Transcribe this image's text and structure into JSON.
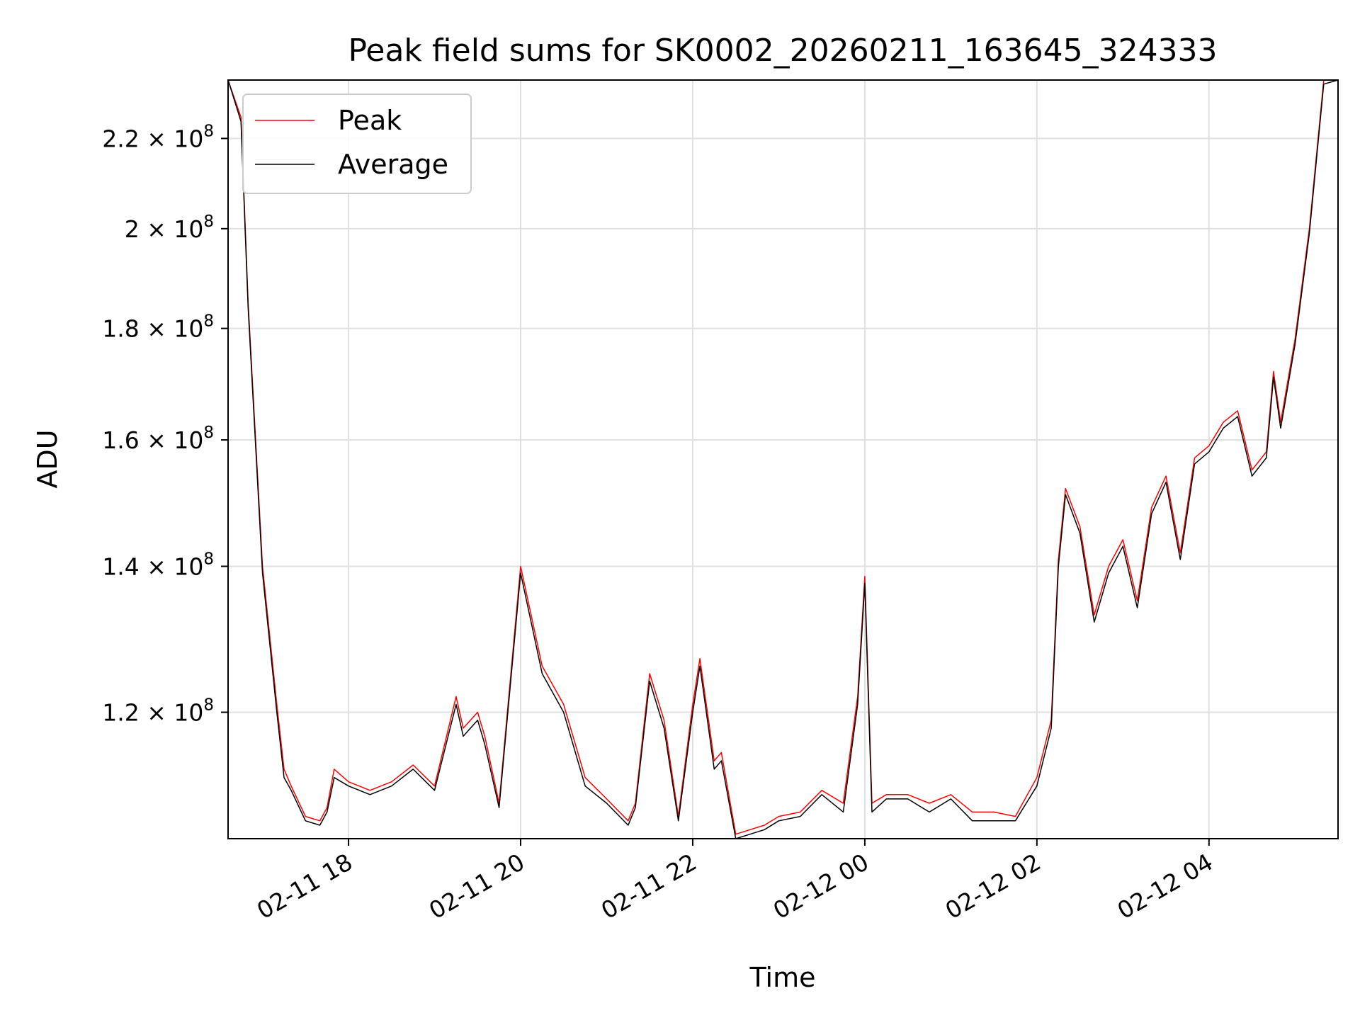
{
  "chart_data": {
    "type": "line",
    "title": "Peak field sums for SK0002_20260211_163645_324333",
    "xlabel": "Time",
    "ylabel": "ADU",
    "yscale": "log",
    "grid": true,
    "legend_position": "upper-left",
    "xlim": [
      "2026-02-11 16:36",
      "2026-02-12 05:30"
    ],
    "ylim": [
      105000000,
      234000000
    ],
    "x_ticks": [
      {
        "t": "2026-02-11 18:00",
        "label": "02-11 18"
      },
      {
        "t": "2026-02-11 20:00",
        "label": "02-11 20"
      },
      {
        "t": "2026-02-11 22:00",
        "label": "02-11 22"
      },
      {
        "t": "2026-02-12 00:00",
        "label": "02-12 00"
      },
      {
        "t": "2026-02-12 02:00",
        "label": "02-12 02"
      },
      {
        "t": "2026-02-12 04:00",
        "label": "02-12 04"
      }
    ],
    "y_ticks": [
      {
        "value": 120000000,
        "mantissa": "1.2",
        "exponent": "8"
      },
      {
        "value": 140000000,
        "mantissa": "1.4",
        "exponent": "8"
      },
      {
        "value": 160000000,
        "mantissa": "1.6",
        "exponent": "8"
      },
      {
        "value": 180000000,
        "mantissa": "1.8",
        "exponent": "8"
      },
      {
        "value": 200000000,
        "mantissa": "2",
        "exponent": "8"
      },
      {
        "value": 220000000,
        "mantissa": "2.2",
        "exponent": "8"
      }
    ],
    "series": [
      {
        "name": "Peak",
        "color": "#ff0000",
        "x": [
          "2026-02-11 16:36",
          "2026-02-11 16:45",
          "2026-02-11 16:50",
          "2026-02-11 17:00",
          "2026-02-11 17:10",
          "2026-02-11 17:15",
          "2026-02-11 17:20",
          "2026-02-11 17:30",
          "2026-02-11 17:40",
          "2026-02-11 17:45",
          "2026-02-11 17:50",
          "2026-02-11 18:00",
          "2026-02-11 18:15",
          "2026-02-11 18:30",
          "2026-02-11 18:45",
          "2026-02-11 19:00",
          "2026-02-11 19:15",
          "2026-02-11 19:20",
          "2026-02-11 19:30",
          "2026-02-11 19:35",
          "2026-02-11 19:45",
          "2026-02-11 20:00",
          "2026-02-11 20:15",
          "2026-02-11 20:30",
          "2026-02-11 20:45",
          "2026-02-11 21:00",
          "2026-02-11 21:15",
          "2026-02-11 21:20",
          "2026-02-11 21:30",
          "2026-02-11 21:40",
          "2026-02-11 21:50",
          "2026-02-11 22:00",
          "2026-02-11 22:05",
          "2026-02-11 22:15",
          "2026-02-11 22:20",
          "2026-02-11 22:30",
          "2026-02-11 22:40",
          "2026-02-11 22:50",
          "2026-02-11 23:00",
          "2026-02-11 23:15",
          "2026-02-11 23:30",
          "2026-02-11 23:45",
          "2026-02-11 23:55",
          "2026-02-12 00:00",
          "2026-02-12 00:05",
          "2026-02-12 00:15",
          "2026-02-12 00:30",
          "2026-02-12 00:45",
          "2026-02-12 01:00",
          "2026-02-12 01:15",
          "2026-02-12 01:30",
          "2026-02-12 01:45",
          "2026-02-12 02:00",
          "2026-02-12 02:10",
          "2026-02-12 02:15",
          "2026-02-12 02:20",
          "2026-02-12 02:30",
          "2026-02-12 02:40",
          "2026-02-12 02:50",
          "2026-02-12 03:00",
          "2026-02-12 03:10",
          "2026-02-12 03:20",
          "2026-02-12 03:30",
          "2026-02-12 03:40",
          "2026-02-12 03:50",
          "2026-02-12 04:00",
          "2026-02-12 04:10",
          "2026-02-12 04:20",
          "2026-02-12 04:30",
          "2026-02-12 04:40",
          "2026-02-12 04:45",
          "2026-02-12 04:50",
          "2026-02-12 05:00",
          "2026-02-12 05:10",
          "2026-02-12 05:20",
          "2026-02-12 05:30"
        ],
        "values": [
          234000000,
          225000000,
          185000000,
          140000000,
          121000000,
          113000000,
          111000000,
          107500000,
          107000000,
          108500000,
          113000000,
          111500000,
          110500000,
          111500000,
          113500000,
          111000000,
          122000000,
          118000000,
          120000000,
          117000000,
          109000000,
          140000000,
          126000000,
          121000000,
          112000000,
          109500000,
          107000000,
          109000000,
          125000000,
          119000000,
          107500000,
          121000000,
          127000000,
          114000000,
          115000000,
          105500000,
          106000000,
          106500000,
          107500000,
          108000000,
          110500000,
          109000000,
          122000000,
          138500000,
          109000000,
          110000000,
          110000000,
          109000000,
          110000000,
          108000000,
          108000000,
          107500000,
          112000000,
          119000000,
          141000000,
          152000000,
          146000000,
          133000000,
          140000000,
          144000000,
          135000000,
          149000000,
          154000000,
          142000000,
          157000000,
          159000000,
          163000000,
          165000000,
          155000000,
          158000000,
          172000000,
          163000000,
          178000000,
          200000000,
          234000000,
          234000000
        ]
      },
      {
        "name": "Average",
        "color": "#000000",
        "x": [
          "2026-02-11 16:36",
          "2026-02-11 16:45",
          "2026-02-11 16:50",
          "2026-02-11 17:00",
          "2026-02-11 17:10",
          "2026-02-11 17:15",
          "2026-02-11 17:20",
          "2026-02-11 17:30",
          "2026-02-11 17:40",
          "2026-02-11 17:45",
          "2026-02-11 17:50",
          "2026-02-11 18:00",
          "2026-02-11 18:15",
          "2026-02-11 18:30",
          "2026-02-11 18:45",
          "2026-02-11 19:00",
          "2026-02-11 19:15",
          "2026-02-11 19:20",
          "2026-02-11 19:30",
          "2026-02-11 19:35",
          "2026-02-11 19:45",
          "2026-02-11 20:00",
          "2026-02-11 20:15",
          "2026-02-11 20:30",
          "2026-02-11 20:45",
          "2026-02-11 21:00",
          "2026-02-11 21:15",
          "2026-02-11 21:20",
          "2026-02-11 21:30",
          "2026-02-11 21:40",
          "2026-02-11 21:50",
          "2026-02-11 22:00",
          "2026-02-11 22:05",
          "2026-02-11 22:15",
          "2026-02-11 22:20",
          "2026-02-11 22:30",
          "2026-02-11 22:40",
          "2026-02-11 22:50",
          "2026-02-11 23:00",
          "2026-02-11 23:15",
          "2026-02-11 23:30",
          "2026-02-11 23:45",
          "2026-02-11 23:55",
          "2026-02-12 00:00",
          "2026-02-12 00:05",
          "2026-02-12 00:15",
          "2026-02-12 00:30",
          "2026-02-12 00:45",
          "2026-02-12 01:00",
          "2026-02-12 01:15",
          "2026-02-12 01:30",
          "2026-02-12 01:45",
          "2026-02-12 02:00",
          "2026-02-12 02:10",
          "2026-02-12 02:15",
          "2026-02-12 02:20",
          "2026-02-12 02:30",
          "2026-02-12 02:40",
          "2026-02-12 02:50",
          "2026-02-12 03:00",
          "2026-02-12 03:10",
          "2026-02-12 03:20",
          "2026-02-12 03:30",
          "2026-02-12 03:40",
          "2026-02-12 03:50",
          "2026-02-12 04:00",
          "2026-02-12 04:10",
          "2026-02-12 04:20",
          "2026-02-12 04:30",
          "2026-02-12 04:40",
          "2026-02-12 04:45",
          "2026-02-12 04:50",
          "2026-02-12 05:00",
          "2026-02-12 05:10",
          "2026-02-12 05:20",
          "2026-02-12 05:30"
        ],
        "values": [
          234000000,
          224000000,
          184000000,
          139000000,
          120000000,
          112000000,
          110500000,
          107000000,
          106500000,
          108000000,
          112000000,
          111000000,
          110000000,
          111000000,
          113000000,
          110500000,
          121000000,
          117000000,
          119000000,
          116000000,
          108500000,
          139000000,
          125000000,
          120000000,
          111000000,
          109000000,
          106500000,
          108500000,
          124000000,
          118000000,
          107000000,
          120000000,
          126000000,
          113000000,
          114000000,
          105000000,
          105500000,
          106000000,
          107000000,
          107500000,
          110000000,
          108000000,
          121000000,
          137500000,
          108000000,
          109500000,
          109500000,
          108000000,
          109500000,
          107000000,
          107000000,
          107000000,
          111000000,
          118000000,
          140000000,
          151000000,
          145000000,
          132000000,
          139000000,
          143000000,
          134000000,
          148000000,
          153000000,
          141000000,
          156000000,
          158000000,
          162000000,
          164000000,
          154000000,
          157000000,
          171000000,
          162000000,
          177000000,
          199000000,
          233000000,
          234000000
        ]
      }
    ]
  }
}
